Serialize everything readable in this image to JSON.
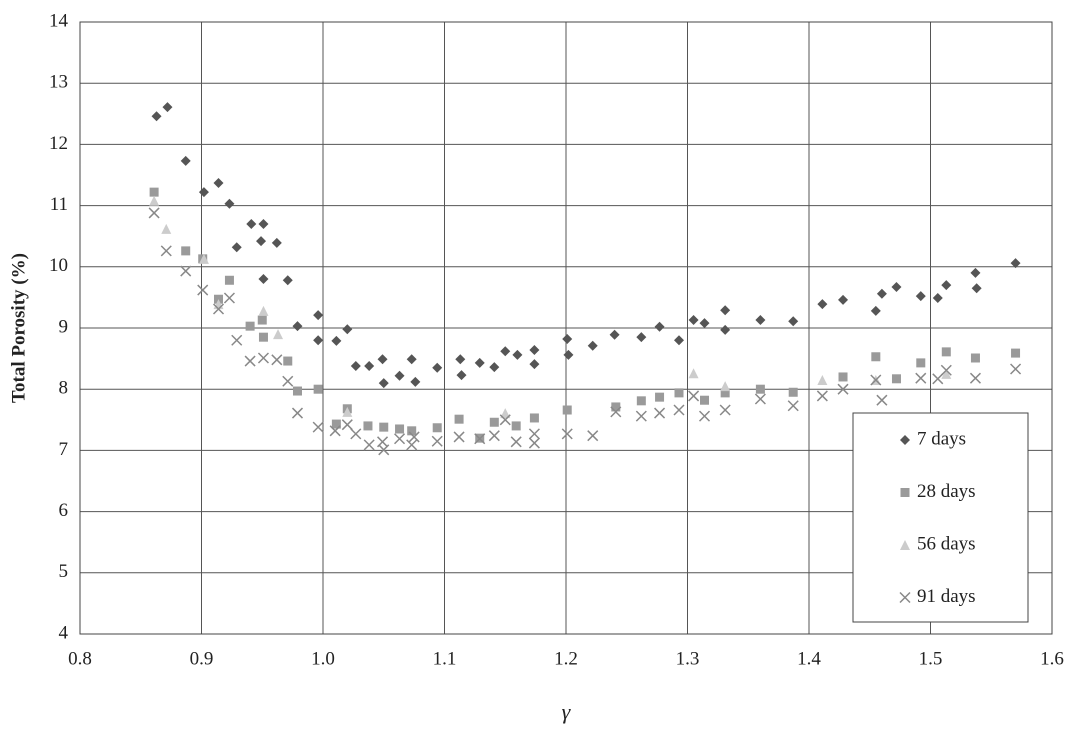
{
  "chart_data": {
    "type": "scatter",
    "x_label": "γ",
    "y_label": "Total Porosity (%)",
    "xlim": [
      0.8,
      1.6
    ],
    "xticks": [
      0.8,
      0.9,
      {
        "value": 1,
        "label": "1.0"
      },
      1.1,
      1.2,
      1.3,
      1.4,
      1.5,
      1.6
    ],
    "ylim": [
      4,
      14
    ],
    "yticks": [
      4,
      5,
      6,
      7,
      8,
      9,
      10,
      11,
      12,
      13,
      14
    ],
    "grid": true,
    "legend": "lower right",
    "series": [
      {
        "name": "7 days",
        "color": "#555555",
        "marker": "diamond",
        "x": [
          0.863,
          0.872,
          0.887,
          0.902,
          0.914,
          0.923,
          0.929,
          0.941,
          0.951,
          0.949,
          0.962,
          0.951,
          0.971,
          0.979,
          0.996,
          0.996,
          1.011,
          1.02,
          1.027,
          1.038,
          1.049,
          1.05,
          1.063,
          1.073,
          1.076,
          1.094,
          1.113,
          1.114,
          1.129,
          1.141,
          1.15,
          1.16,
          1.174,
          1.174,
          1.201,
          1.202,
          1.222,
          1.24,
          1.262,
          1.277,
          1.293,
          1.305,
          1.314,
          1.331,
          1.331,
          1.36,
          1.387,
          1.411,
          1.428,
          1.455,
          1.46,
          1.472,
          1.492,
          1.506,
          1.513,
          1.537,
          1.538,
          1.57
        ],
        "values": [
          12.46,
          12.61,
          11.73,
          11.22,
          11.37,
          11.03,
          10.32,
          10.7,
          10.7,
          10.42,
          10.39,
          9.8,
          9.78,
          9.03,
          9.21,
          8.8,
          8.79,
          8.98,
          8.38,
          8.38,
          8.49,
          8.1,
          8.22,
          8.49,
          8.12,
          8.35,
          8.49,
          8.23,
          8.43,
          8.36,
          8.62,
          8.56,
          8.64,
          8.41,
          8.82,
          8.56,
          8.71,
          8.89,
          8.85,
          9.02,
          8.8,
          9.13,
          9.08,
          9.29,
          8.97,
          9.13,
          9.11,
          9.39,
          9.46,
          9.28,
          9.56,
          9.67,
          9.52,
          9.49,
          9.7,
          9.9,
          9.65,
          10.06
        ]
      },
      {
        "name": "28 days",
        "color": "#9a9a9a",
        "marker": "square",
        "x": [
          0.861,
          0.887,
          0.901,
          0.914,
          0.923,
          0.94,
          0.95,
          0.951,
          0.971,
          0.979,
          0.996,
          1.011,
          1.02,
          1.037,
          1.05,
          1.063,
          1.073,
          1.094,
          1.112,
          1.129,
          1.141,
          1.159,
          1.174,
          1.201,
          1.241,
          1.262,
          1.277,
          1.293,
          1.314,
          1.331,
          1.36,
          1.387,
          1.428,
          1.455,
          1.472,
          1.492,
          1.513,
          1.537,
          1.57
        ],
        "values": [
          11.22,
          10.26,
          10.13,
          9.47,
          9.78,
          9.03,
          9.13,
          8.85,
          8.46,
          7.97,
          8.0,
          7.43,
          7.68,
          7.4,
          7.38,
          7.35,
          7.32,
          7.37,
          7.51,
          7.2,
          7.46,
          7.4,
          7.53,
          7.66,
          7.71,
          7.81,
          7.87,
          7.94,
          7.82,
          7.94,
          8.0,
          7.95,
          8.2,
          8.53,
          8.17,
          8.43,
          8.61,
          8.51,
          8.59
        ]
      },
      {
        "name": "56 days",
        "color": "#cccccc",
        "marker": "triangle",
        "x": [
          0.861,
          0.871,
          0.902,
          0.914,
          0.951,
          0.963,
          1.02,
          1.15,
          1.305,
          1.331,
          1.411,
          1.455,
          1.513
        ],
        "values": [
          11.08,
          10.62,
          10.13,
          9.39,
          9.28,
          8.9,
          7.63,
          7.61,
          8.26,
          8.05,
          8.15,
          8.15,
          8.25
        ]
      },
      {
        "name": "91 days",
        "color": "#888888",
        "marker": "cross",
        "x": [
          0.861,
          0.871,
          0.887,
          0.901,
          0.914,
          0.923,
          0.929,
          0.94,
          0.951,
          0.962,
          0.971,
          0.979,
          0.996,
          1.01,
          1.02,
          1.027,
          1.038,
          1.049,
          1.05,
          1.063,
          1.073,
          1.075,
          1.094,
          1.112,
          1.129,
          1.141,
          1.15,
          1.159,
          1.174,
          1.174,
          1.201,
          1.222,
          1.241,
          1.262,
          1.277,
          1.293,
          1.305,
          1.314,
          1.331,
          1.36,
          1.387,
          1.411,
          1.428,
          1.455,
          1.46,
          1.492,
          1.506,
          1.513,
          1.537,
          1.57
        ],
        "values": [
          10.88,
          10.26,
          9.93,
          9.62,
          9.31,
          9.49,
          8.8,
          8.46,
          8.51,
          8.48,
          8.13,
          7.61,
          7.38,
          7.32,
          7.42,
          7.27,
          7.09,
          7.14,
          7.01,
          7.19,
          7.09,
          7.22,
          7.15,
          7.22,
          7.19,
          7.24,
          7.5,
          7.14,
          7.12,
          7.27,
          7.27,
          7.24,
          7.63,
          7.56,
          7.61,
          7.66,
          7.89,
          7.56,
          7.66,
          7.84,
          7.73,
          7.89,
          8.0,
          8.15,
          7.82,
          8.18,
          8.17,
          8.31,
          8.18,
          8.33
        ]
      }
    ]
  }
}
